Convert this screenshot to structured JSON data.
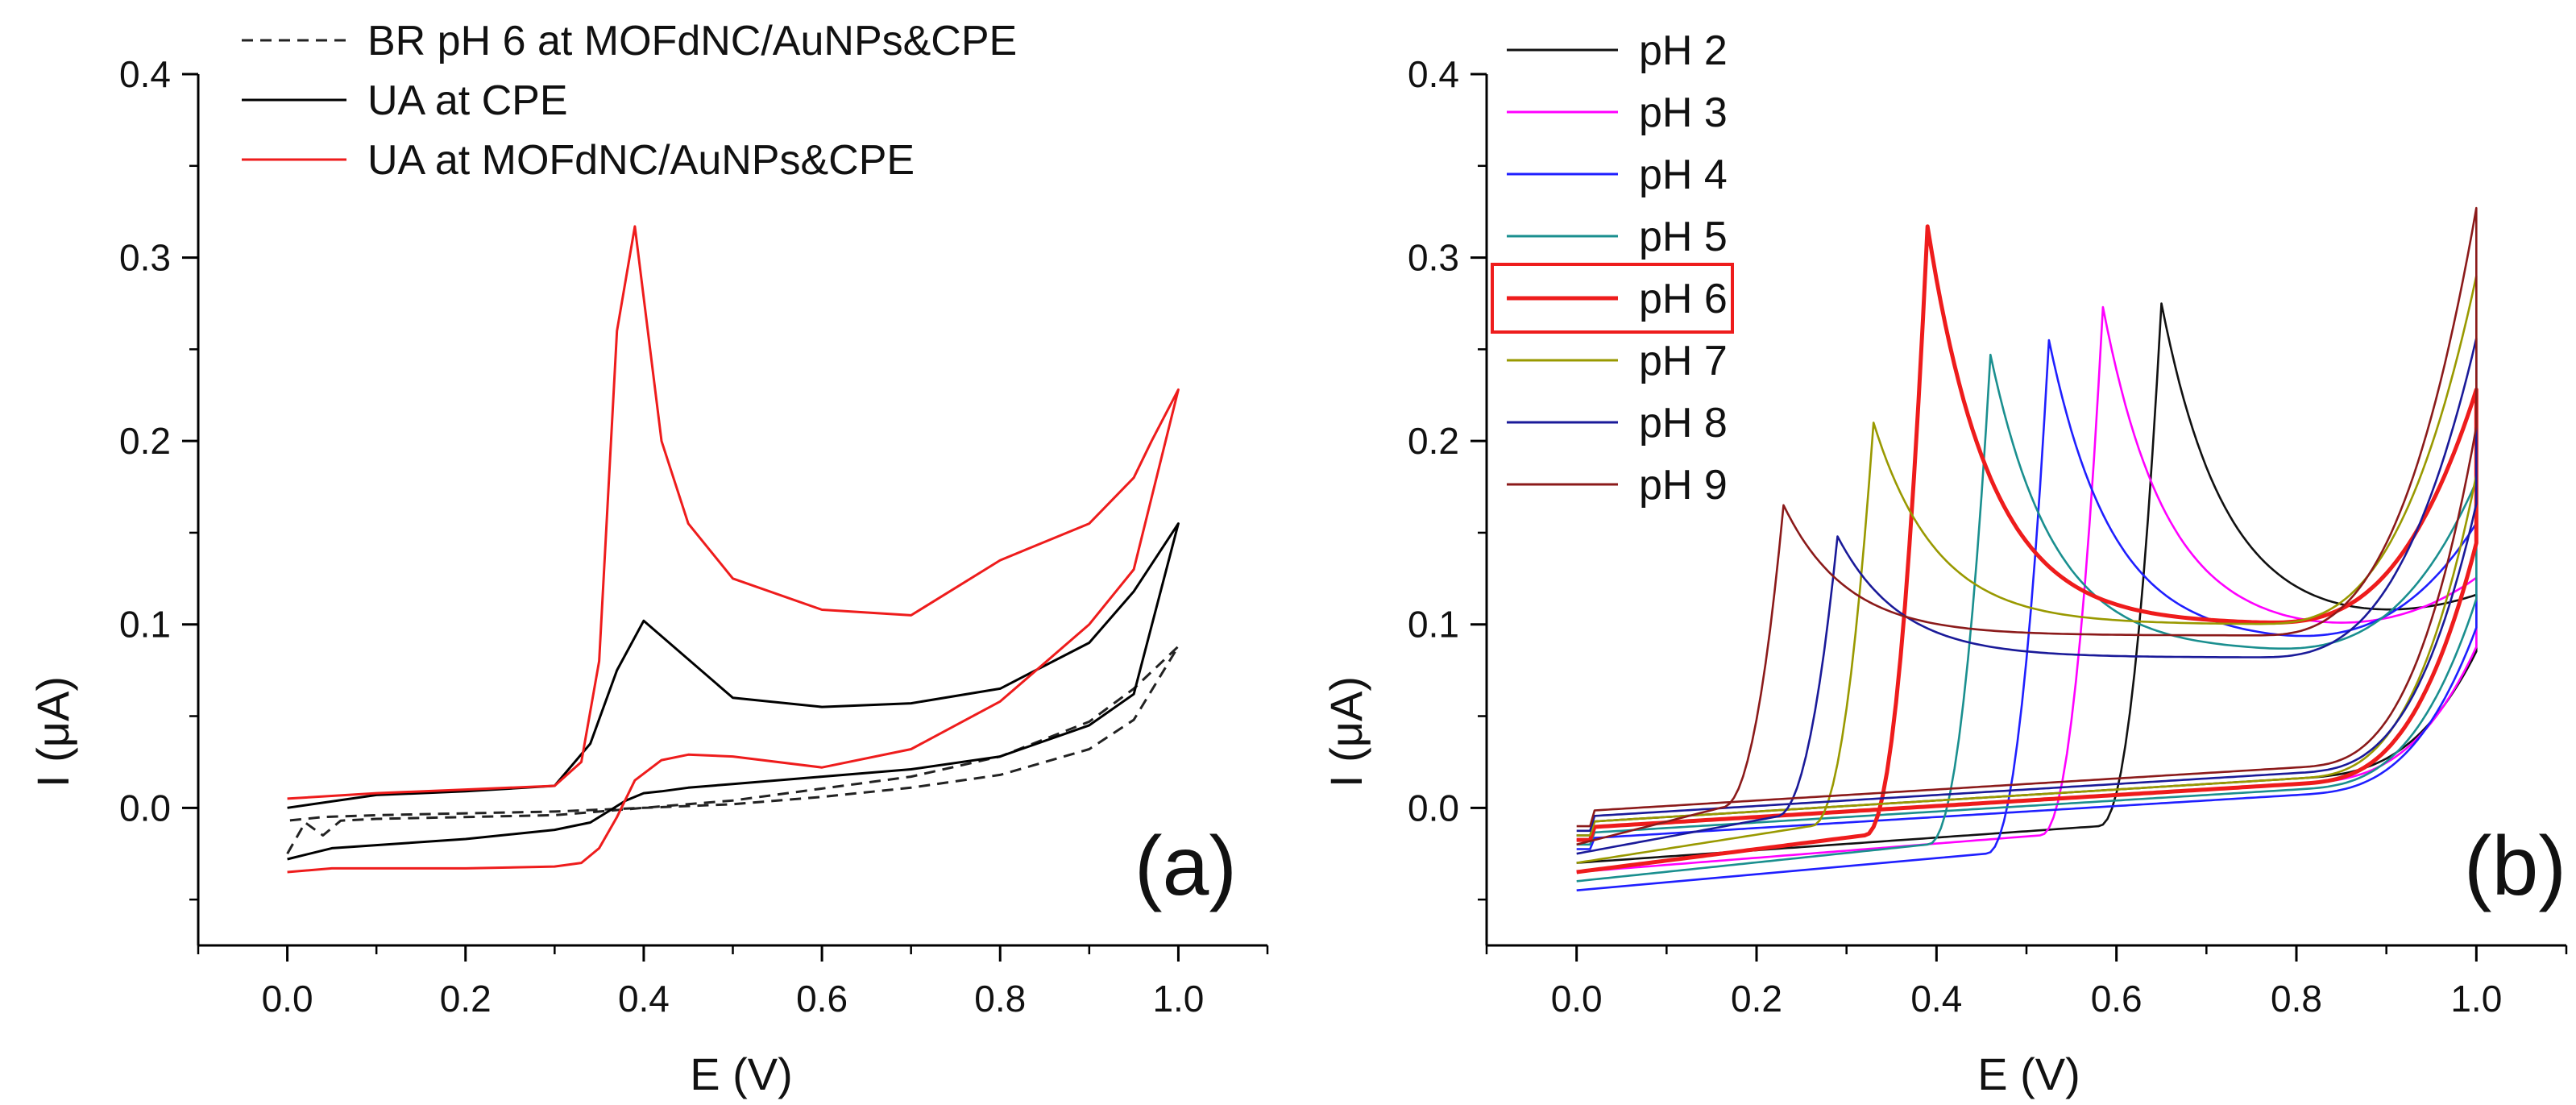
{
  "chart_data": [
    {
      "id": "a",
      "type": "line",
      "panel_label": "(a)",
      "xlabel": "E (V)",
      "ylabel": "I (μA)",
      "xlim": [
        -0.1,
        1.1
      ],
      "ylim": [
        -0.075,
        0.4
      ],
      "xticks": [
        0.0,
        0.2,
        0.4,
        0.6,
        0.8,
        1.0
      ],
      "yticks": [
        0.0,
        0.1,
        0.2,
        0.3,
        0.4
      ],
      "xtick_labels": [
        "0.0",
        "0.2",
        "0.4",
        "0.6",
        "0.8",
        "1.0"
      ],
      "ytick_labels": [
        "0.0",
        "0.1",
        "0.2",
        "0.3",
        "0.4"
      ],
      "legend_position": "top-center",
      "series": [
        {
          "name": "BR pH 6 at MOFdNC/AuNPs&CPE",
          "color": "#222222",
          "dash": true,
          "x": [
            0.0,
            0.02,
            0.04,
            0.06,
            0.1,
            0.3,
            0.5,
            0.7,
            0.8,
            0.9,
            0.95,
            1.0,
            0.95,
            0.9,
            0.8,
            0.7,
            0.6,
            0.5,
            0.4,
            0.3,
            0.2,
            0.1,
            0.04,
            0.02,
            0.0
          ],
          "y": [
            -0.025,
            -0.008,
            -0.015,
            -0.007,
            -0.006,
            -0.004,
            0.004,
            0.017,
            0.028,
            0.047,
            0.065,
            0.088,
            0.048,
            0.032,
            0.018,
            0.011,
            0.006,
            0.002,
            0.0,
            -0.002,
            -0.003,
            -0.004,
            -0.005,
            -0.006,
            -0.007
          ]
        },
        {
          "name": "UA at CPE",
          "color": "#000000",
          "dash": false,
          "x": [
            0.0,
            0.05,
            0.2,
            0.3,
            0.34,
            0.36,
            0.38,
            0.4,
            0.42,
            0.45,
            0.5,
            0.6,
            0.7,
            0.8,
            0.9,
            0.95,
            1.0,
            0.95,
            0.9,
            0.8,
            0.7,
            0.6,
            0.5,
            0.4,
            0.37,
            0.34,
            0.3,
            0.2,
            0.1,
            0.0
          ],
          "y": [
            -0.028,
            -0.022,
            -0.017,
            -0.012,
            -0.008,
            -0.002,
            0.004,
            0.008,
            0.009,
            0.011,
            0.013,
            0.017,
            0.021,
            0.028,
            0.045,
            0.062,
            0.155,
            0.118,
            0.09,
            0.065,
            0.057,
            0.055,
            0.06,
            0.102,
            0.075,
            0.035,
            0.012,
            0.009,
            0.007,
            0.0
          ]
        },
        {
          "name": "UA at MOFdNC/AuNPs&CPE",
          "color": "#ee1c1c",
          "dash": false,
          "x": [
            0.0,
            0.05,
            0.2,
            0.3,
            0.33,
            0.35,
            0.37,
            0.39,
            0.42,
            0.45,
            0.5,
            0.6,
            0.7,
            0.8,
            0.9,
            0.95,
            1.0,
            0.97,
            0.95,
            0.9,
            0.8,
            0.7,
            0.6,
            0.5,
            0.45,
            0.42,
            0.39,
            0.37,
            0.35,
            0.33,
            0.3,
            0.2,
            0.1,
            0.0
          ],
          "y": [
            -0.035,
            -0.033,
            -0.033,
            -0.032,
            -0.03,
            -0.022,
            -0.005,
            0.015,
            0.026,
            0.029,
            0.028,
            0.022,
            0.032,
            0.058,
            0.1,
            0.13,
            0.228,
            0.2,
            0.18,
            0.155,
            0.135,
            0.105,
            0.108,
            0.125,
            0.155,
            0.2,
            0.317,
            0.26,
            0.08,
            0.025,
            0.012,
            0.01,
            0.008,
            0.005
          ]
        }
      ]
    },
    {
      "id": "b",
      "type": "line",
      "panel_label": "(b)",
      "xlabel": "E (V)",
      "ylabel": "I (μA)",
      "xlim": [
        -0.1,
        1.1
      ],
      "ylim": [
        -0.075,
        0.4
      ],
      "xticks": [
        0.0,
        0.2,
        0.4,
        0.6,
        0.8,
        1.0
      ],
      "yticks": [
        0.0,
        0.1,
        0.2,
        0.3,
        0.4
      ],
      "xtick_labels": [
        "0.0",
        "0.2",
        "0.4",
        "0.6",
        "0.8",
        "1.0"
      ],
      "ytick_labels": [
        "0.0",
        "0.1",
        "0.2",
        "0.3",
        "0.4"
      ],
      "legend_position": "top-left",
      "highlighted_series": "pH 6",
      "series": [
        {
          "name": "pH 2",
          "color": "#111111",
          "ep": 0.65,
          "ip": 0.275,
          "iend": 0.115,
          "imin": 0.1,
          "ifwd": 0.055,
          "istart": -0.03
        },
        {
          "name": "pH 3",
          "color": "#ff00ff",
          "ep": 0.585,
          "ip": 0.273,
          "iend": 0.125,
          "imin": 0.095,
          "ifwd": 0.06,
          "istart": -0.035
        },
        {
          "name": "pH 4",
          "color": "#1f1fff",
          "ep": 0.525,
          "ip": 0.255,
          "iend": 0.155,
          "imin": 0.09,
          "ifwd": 0.065,
          "istart": -0.045
        },
        {
          "name": "pH 5",
          "color": "#1a8f8f",
          "ep": 0.46,
          "ip": 0.247,
          "iend": 0.178,
          "imin": 0.085,
          "ifwd": 0.07,
          "istart": -0.04
        },
        {
          "name": "pH 6",
          "color": "#ee1c1c",
          "ep": 0.39,
          "ip": 0.317,
          "iend": 0.228,
          "imin": 0.1,
          "ifwd": 0.09,
          "istart": -0.035
        },
        {
          "name": "pH 7",
          "color": "#999900",
          "ep": 0.33,
          "ip": 0.21,
          "iend": 0.29,
          "imin": 0.1,
          "ifwd": 0.12,
          "istart": -0.03
        },
        {
          "name": "pH 8",
          "color": "#1a1a99",
          "ep": 0.29,
          "ip": 0.148,
          "iend": 0.256,
          "imin": 0.082,
          "ifwd": 0.1,
          "istart": -0.025
        },
        {
          "name": "pH 9",
          "color": "#8b1a1a",
          "ep": 0.23,
          "ip": 0.165,
          "iend": 0.327,
          "imin": 0.094,
          "ifwd": 0.11,
          "istart": -0.02
        }
      ]
    }
  ]
}
